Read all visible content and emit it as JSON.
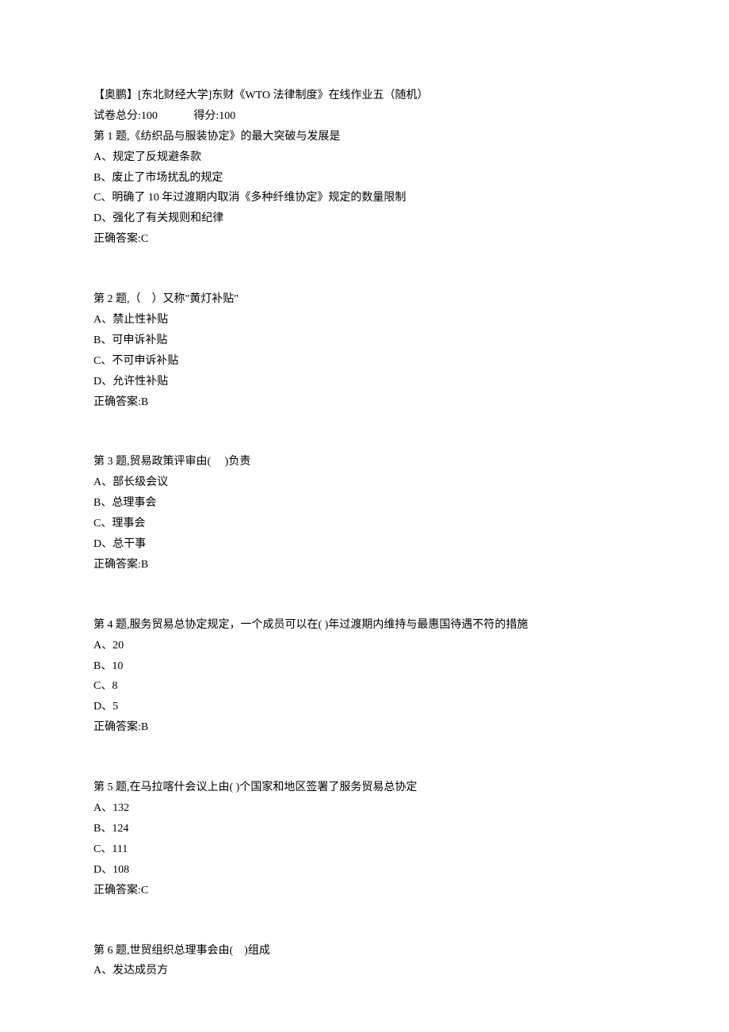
{
  "header": {
    "title": "【奥鹏】[东北财经大学]东财《WTO 法律制度》在线作业五（随机）",
    "total_score_label": "试卷总分:100",
    "got_score_label": "得分:100"
  },
  "questions": [
    {
      "prompt": "第 1 题,《纺织品与服装协定》的最大突破与发展是",
      "options": [
        "A、规定了反规避条款",
        "B、废止了市场扰乱的规定",
        "C、明确了 10 年过渡期内取消《多种纤维协定》规定的数量限制",
        "D、强化了有关规则和纪律"
      ],
      "answer": "正确答案:C"
    },
    {
      "prompt": "第 2 题,（　）又称\"黄灯补贴\"",
      "options": [
        "A、禁止性补贴",
        "B、可申诉补贴",
        "C、不可申诉补贴",
        "D、允许性补贴"
      ],
      "answer": "正确答案:B"
    },
    {
      "prompt": "第 3 题,贸易政策评审由(　 )负责",
      "options": [
        "A、部长级会议",
        "B、总理事会",
        "C、理事会",
        "D、总干事"
      ],
      "answer": "正确答案:B"
    },
    {
      "prompt": "第 4 题,服务贸易总协定规定，一个成员可以在( )年过渡期内维持与最惠国待遇不符的措施",
      "options": [
        "A、20",
        "B、10",
        "C、8",
        "D、5"
      ],
      "answer": "正确答案:B"
    },
    {
      "prompt": "第 5 题,在马拉喀什会议上由( )个国家和地区签署了服务贸易总协定",
      "options": [
        "A、132",
        "B、124",
        "C、111",
        "D、108"
      ],
      "answer": "正确答案:C"
    },
    {
      "prompt": "第 6 题,世贸组织总理事会由(　)组成",
      "options": [
        "A、发达成员方"
      ],
      "answer": ""
    }
  ]
}
